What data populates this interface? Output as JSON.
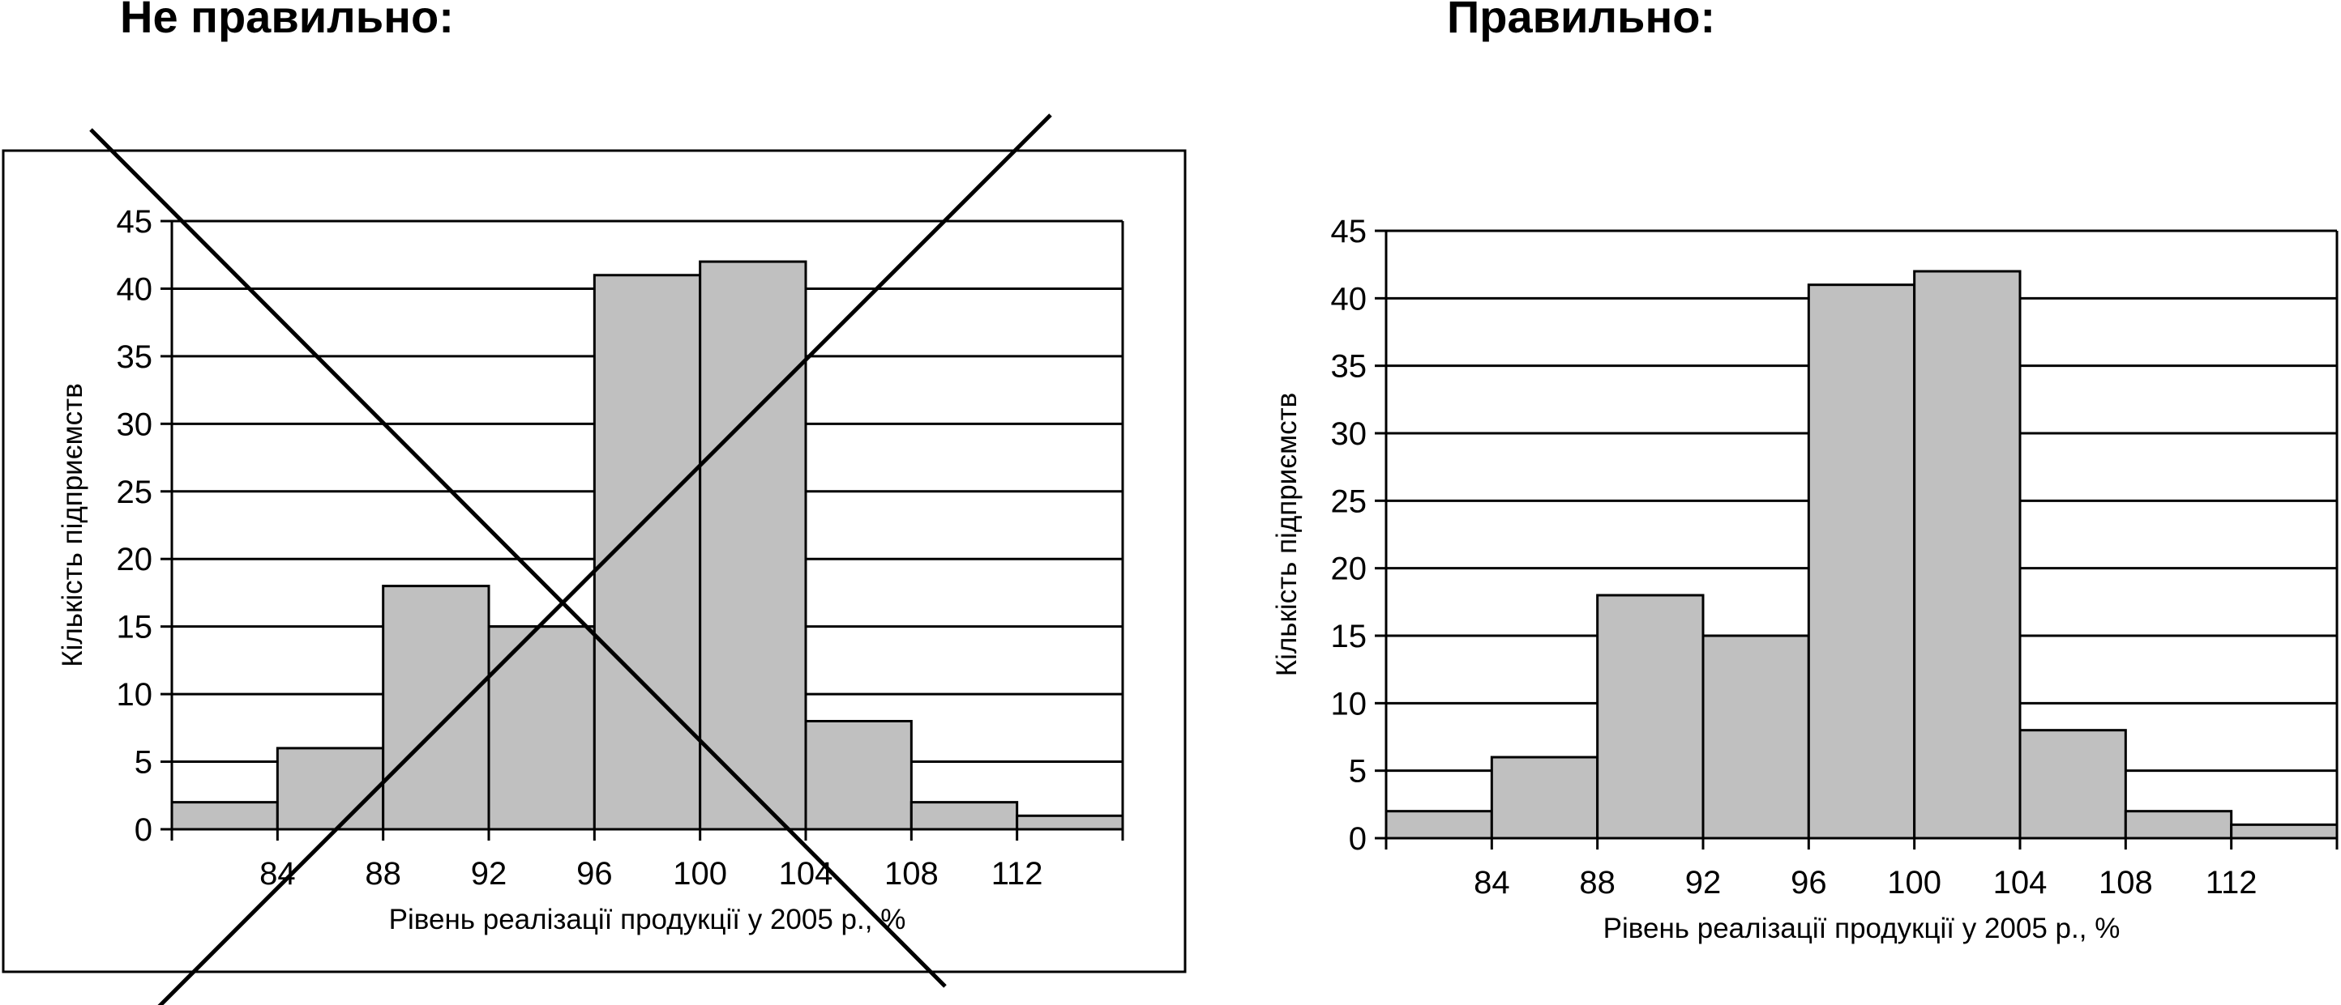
{
  "headings": {
    "wrong": "Не правильно:",
    "right": "Правильно:"
  },
  "colors": {
    "bar_fill": "#c0c0c0",
    "line": "#000000",
    "background": "#ffffff"
  },
  "chart_data": [
    {
      "type": "bar",
      "variant": "wrong",
      "framed": true,
      "crossed_out": true,
      "grid": true,
      "categories": [
        "<84",
        "84–88",
        "88–92",
        "92–96",
        "96–100",
        "100–104",
        "104–108",
        "108–112",
        ">112"
      ],
      "values": [
        2,
        6,
        18,
        15,
        41,
        42,
        8,
        2,
        1
      ],
      "x_ticks": [
        "84",
        "88",
        "92",
        "96",
        "100",
        "104",
        "108",
        "112"
      ],
      "y_ticks": [
        "0",
        "5",
        "10",
        "15",
        "20",
        "25",
        "30",
        "35",
        "40",
        "45"
      ],
      "ylim": [
        0,
        45
      ],
      "xlabel": "Рівень реалізації продукції у 2005 р., %",
      "ylabel": "Кількість підприємств"
    },
    {
      "type": "bar",
      "variant": "right",
      "framed": false,
      "crossed_out": false,
      "grid": true,
      "categories": [
        "<84",
        "84–88",
        "88–92",
        "92–96",
        "96–100",
        "100–104",
        "104–108",
        "108–112",
        ">112"
      ],
      "values": [
        2,
        6,
        18,
        15,
        41,
        42,
        8,
        2,
        1
      ],
      "x_ticks": [
        "84",
        "88",
        "92",
        "96",
        "100",
        "104",
        "108",
        "112"
      ],
      "y_ticks": [
        "0",
        "5",
        "10",
        "15",
        "20",
        "25",
        "30",
        "35",
        "40",
        "45"
      ],
      "ylim": [
        0,
        45
      ],
      "xlabel": "Рівень реалізації продукції у 2005 р., %",
      "ylabel": "Кількість підприємств"
    }
  ]
}
